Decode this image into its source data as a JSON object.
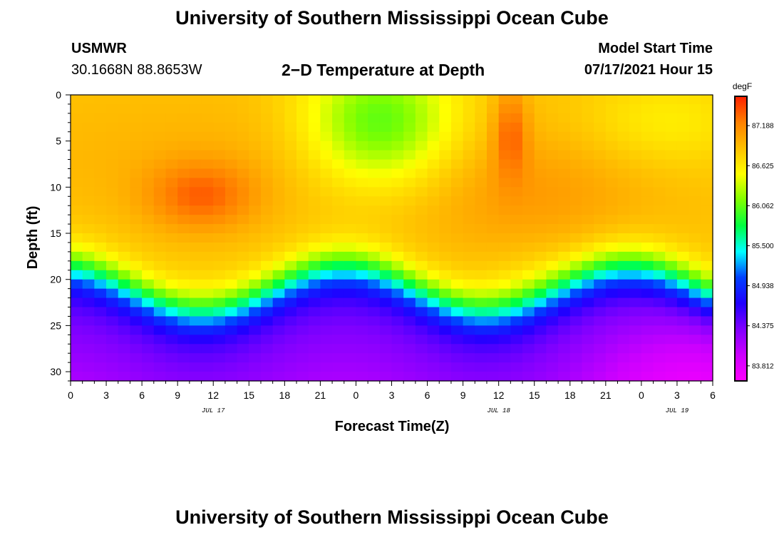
{
  "page": {
    "title_top": "University of Southern Mississippi Ocean Cube",
    "title_bottom": "University of Southern Mississippi Ocean Cube",
    "station": "USMWR",
    "coords": "30.1668N  88.8653W",
    "plot_title": "2−D Temperature at Depth",
    "model_start_label": "Model Start Time",
    "model_start_value": "07/17/2021 Hour 15"
  },
  "colors": {
    "scale": [
      "#ff00ff",
      "#cc00ff",
      "#8000ff",
      "#2000ff",
      "#0040ff",
      "#00ffff",
      "#00ff40",
      "#80ff00",
      "#ffff00",
      "#ffc000",
      "#ff8000",
      "#ff2000"
    ]
  },
  "chart_data": {
    "type": "heatmap",
    "title": "2−D Temperature at Depth",
    "xlabel": "Forecast Time(Z)",
    "ylabel": "Depth (ft)",
    "x_ticks": [
      "0",
      "3",
      "6",
      "9",
      "12",
      "15",
      "18",
      "21",
      "0",
      "3",
      "6",
      "9",
      "12",
      "15",
      "18",
      "21",
      "0",
      "3",
      "6"
    ],
    "x_range_hours": [
      0,
      54
    ],
    "date_labels": [
      {
        "label": "JUL 17",
        "hour": 12
      },
      {
        "label": "JUL 18",
        "hour": 36
      },
      {
        "label": "JUL 19",
        "hour": 51
      }
    ],
    "y_ticks": [
      0,
      5,
      10,
      15,
      20,
      25,
      30
    ],
    "ylim": [
      0,
      31
    ],
    "y_inverted": true,
    "colorbar": {
      "unit": "degF",
      "ticks": [
        "87.188",
        "86.625",
        "86.062",
        "85.500",
        "84.938",
        "84.375",
        "83.812"
      ],
      "tick_values": [
        87.188,
        86.625,
        86.062,
        85.5,
        84.938,
        84.375,
        83.812
      ],
      "range": [
        83.6,
        87.6
      ]
    },
    "depth_step_ft": 1,
    "time_step_hours": 1
  }
}
